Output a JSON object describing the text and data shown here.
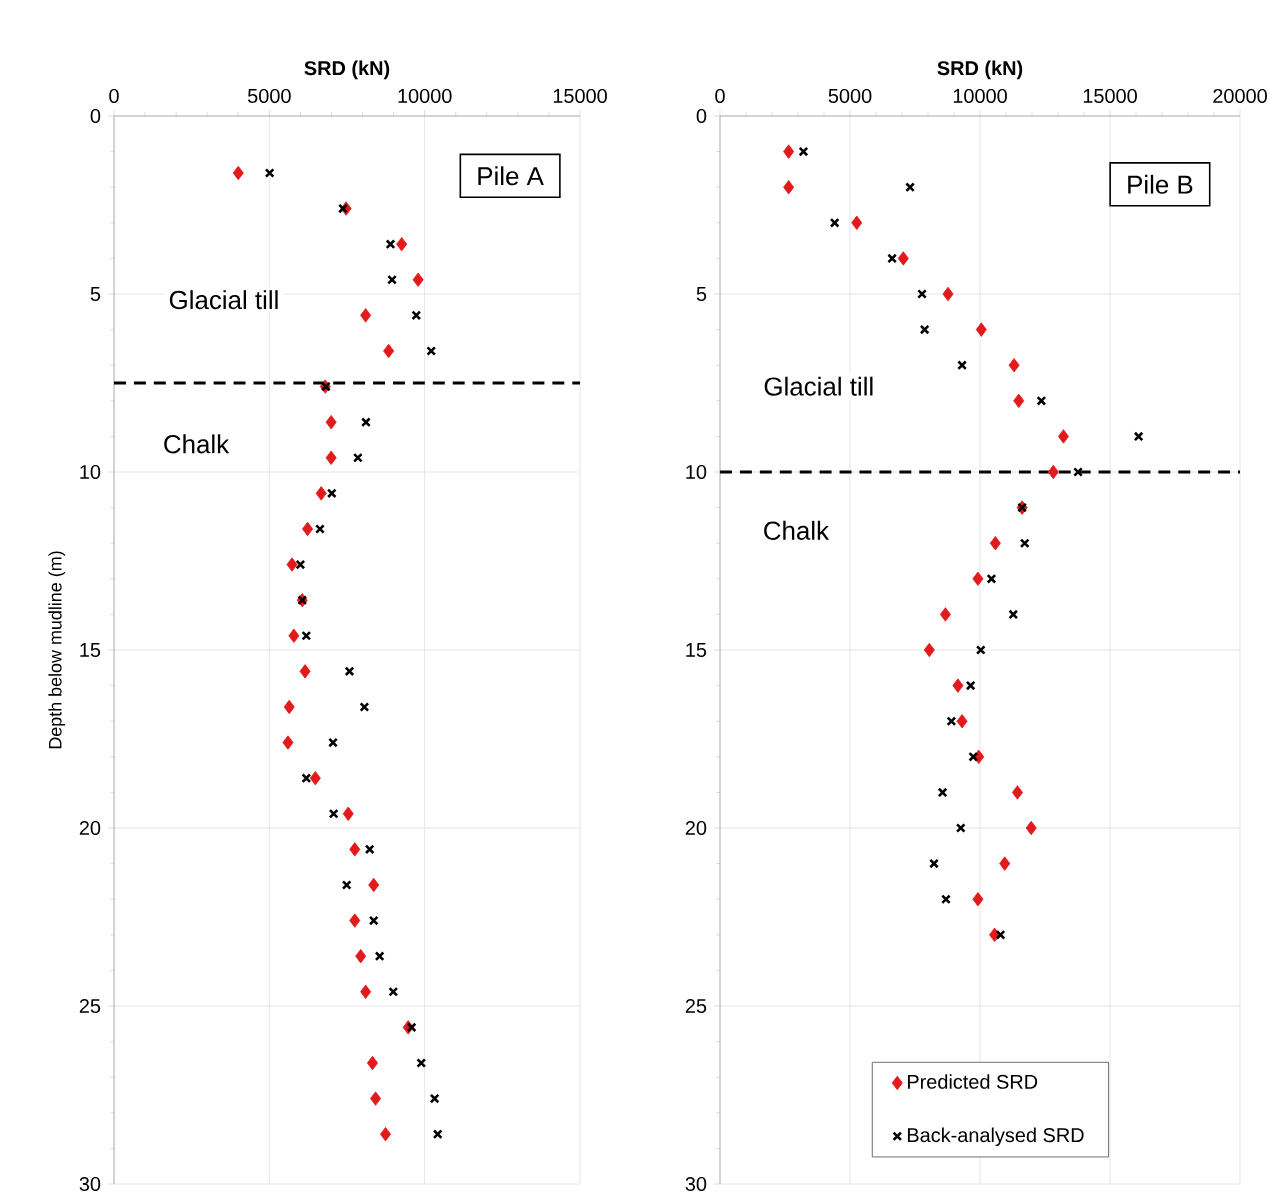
{
  "chart_data": [
    {
      "type": "scatter",
      "xlabel": "SRD (kN)",
      "ylabel": "Depth below mudline (m)",
      "xlim": [
        0,
        15000
      ],
      "xticks": [
        0,
        5000,
        10000,
        15000
      ],
      "ylim": [
        30,
        0
      ],
      "yticks": [
        0,
        5,
        10,
        15,
        20,
        25,
        30
      ],
      "grid": true,
      "legend": false,
      "annotations": [
        "Pile A",
        "Glacial till",
        "Chalk"
      ],
      "ref_lines": [
        {
          "axis": "y",
          "value": 7.5,
          "color": "#000000",
          "line_style": "dashed"
        }
      ],
      "series": [
        {
          "color": "#e31a1c",
          "marker": "diamond",
          "x": [
            4000,
            7470,
            9260,
            9790,
            8100,
            8840,
            6800,
            6990,
            6990,
            6670,
            6230,
            5730,
            6060,
            5790,
            6150,
            5640,
            5600,
            6480,
            7540,
            7750,
            8360,
            7750,
            7940,
            8100,
            9470,
            8320,
            8420,
            8740
          ],
          "values": [
            1.6,
            2.6,
            3.6,
            4.6,
            5.6,
            6.6,
            7.6,
            8.6,
            9.6,
            10.6,
            11.6,
            12.6,
            13.6,
            14.6,
            15.6,
            16.6,
            17.6,
            18.6,
            19.6,
            20.6,
            21.6,
            22.6,
            23.6,
            24.6,
            25.6,
            26.6,
            27.6,
            28.6
          ]
        },
        {
          "color": "#000000",
          "marker": "cross",
          "x": [
            5010,
            7370,
            8900,
            8950,
            9730,
            10210,
            6820,
            8110,
            7850,
            7010,
            6630,
            6000,
            6060,
            6190,
            7580,
            8060,
            7050,
            6190,
            7070,
            8230,
            7490,
            8360,
            8550,
            8990,
            9580,
            9890,
            10320,
            10420
          ],
          "values": [
            1.6,
            2.6,
            3.6,
            4.6,
            5.6,
            6.6,
            7.6,
            8.6,
            9.6,
            10.6,
            11.6,
            12.6,
            13.6,
            14.6,
            15.6,
            16.6,
            17.6,
            18.6,
            19.6,
            20.6,
            21.6,
            22.6,
            23.6,
            24.6,
            25.6,
            26.6,
            27.6,
            28.6
          ]
        }
      ]
    },
    {
      "type": "scatter",
      "xlabel": "SRD (kN)",
      "xlim": [
        0,
        20000
      ],
      "xticks": [
        0,
        5000,
        10000,
        15000,
        20000
      ],
      "ylim": [
        30,
        0
      ],
      "yticks": [
        0,
        5,
        10,
        15,
        20,
        25,
        30
      ],
      "grid": true,
      "legend": "bottom",
      "annotations": [
        "Pile B",
        "Glacial till",
        "Chalk"
      ],
      "ref_lines": [
        {
          "axis": "y",
          "value": 10,
          "color": "#000000",
          "line_style": "dashed"
        }
      ],
      "series": [
        {
          "name": "Predicted SRD",
          "color": "#e31a1c",
          "marker": "diamond",
          "x": [
            2640,
            2640,
            5260,
            7050,
            8770,
            10050,
            11310,
            11490,
            13210,
            12820,
            11620,
            10590,
            9920,
            8670,
            8050,
            9150,
            9310,
            9950,
            11440,
            11970,
            10950,
            9920,
            10560
          ],
          "values": [
            1,
            2,
            3,
            4,
            5,
            6,
            7,
            8,
            9,
            10,
            11,
            12,
            13,
            14,
            15,
            16,
            17,
            18,
            19,
            20,
            21,
            22,
            23
          ]
        },
        {
          "name": "Back-analysed SRD",
          "color": "#000000",
          "marker": "cross",
          "x": [
            3210,
            7310,
            4410,
            6620,
            7770,
            7870,
            9310,
            12360,
            16100,
            13770,
            11620,
            11720,
            10440,
            11280,
            10030,
            9640,
            8900,
            9740,
            8560,
            9260,
            8230,
            8690,
            10790
          ],
          "values": [
            1,
            2,
            3,
            4,
            5,
            6,
            7,
            8,
            9,
            10,
            11,
            12,
            13,
            14,
            15,
            16,
            17,
            18,
            19,
            20,
            21,
            22,
            23
          ]
        }
      ]
    }
  ]
}
